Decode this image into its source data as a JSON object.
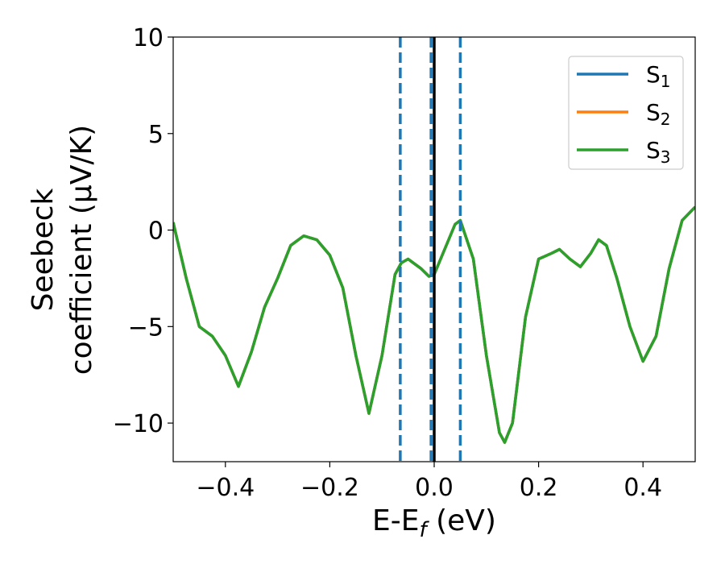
{
  "chart_data": {
    "type": "line",
    "x_label": "E-Ef (eV)",
    "y_label": [
      "Seebeck",
      "coefficient  (μV/K)"
    ],
    "x": [
      -0.5,
      -0.475,
      -0.45,
      -0.425,
      -0.4,
      -0.375,
      -0.35,
      -0.325,
      -0.3,
      -0.275,
      -0.25,
      -0.225,
      -0.2,
      -0.175,
      -0.15,
      -0.125,
      -0.1,
      -0.075,
      -0.063,
      -0.05,
      -0.025,
      -0.01,
      0,
      0.02,
      0.04,
      0.05,
      0.075,
      0.1,
      0.125,
      0.135,
      0.15,
      0.175,
      0.2,
      0.225,
      0.24,
      0.26,
      0.28,
      0.3,
      0.315,
      0.33,
      0.35,
      0.375,
      0.4,
      0.425,
      0.45,
      0.475,
      0.5
    ],
    "series": [
      {
        "name": "S1",
        "color": "#1f77b4",
        "values": [
          0.4,
          -2.5,
          -5.0,
          -5.5,
          -6.5,
          -8.1,
          -6.3,
          -4.0,
          -2.5,
          -0.8,
          -0.3,
          -0.5,
          -1.3,
          -3.0,
          -6.5,
          -9.5,
          -6.5,
          -2.3,
          -1.7,
          -1.5,
          -2.0,
          -2.4,
          -2.3,
          -1.0,
          0.3,
          0.5,
          -1.5,
          -6.5,
          -10.5,
          -11.0,
          -10.0,
          -4.5,
          -1.5,
          -1.2,
          -1.0,
          -1.5,
          -1.9,
          -1.2,
          -0.5,
          -0.8,
          -2.5,
          -5.0,
          -6.8,
          -5.5,
          -2.0,
          0.5,
          1.2
        ]
      },
      {
        "name": "S2",
        "color": "#ff7f0e",
        "values": [
          0.4,
          -2.5,
          -5.0,
          -5.5,
          -6.5,
          -8.1,
          -6.3,
          -4.0,
          -2.5,
          -0.8,
          -0.3,
          -0.5,
          -1.3,
          -3.0,
          -6.5,
          -9.5,
          -6.5,
          -2.3,
          -1.7,
          -1.5,
          -2.0,
          -2.4,
          -2.3,
          -1.0,
          0.3,
          0.5,
          -1.5,
          -6.5,
          -10.5,
          -11.0,
          -10.0,
          -4.5,
          -1.5,
          -1.2,
          -1.0,
          -1.5,
          -1.9,
          -1.2,
          -0.5,
          -0.8,
          -2.5,
          -5.0,
          -6.8,
          -5.5,
          -2.0,
          0.5,
          1.2
        ]
      },
      {
        "name": "S3",
        "color": "#2ca02c",
        "values": [
          0.4,
          -2.5,
          -5.0,
          -5.5,
          -6.5,
          -8.1,
          -6.3,
          -4.0,
          -2.5,
          -0.8,
          -0.3,
          -0.5,
          -1.3,
          -3.0,
          -6.5,
          -9.5,
          -6.5,
          -2.3,
          -1.7,
          -1.5,
          -2.0,
          -2.4,
          -2.3,
          -1.0,
          0.3,
          0.5,
          -1.5,
          -6.5,
          -10.5,
          -11.0,
          -10.0,
          -4.5,
          -1.5,
          -1.2,
          -1.0,
          -1.5,
          -1.9,
          -1.2,
          -0.5,
          -0.8,
          -2.5,
          -5.0,
          -6.8,
          -5.5,
          -2.0,
          0.5,
          1.2
        ]
      }
    ],
    "vlines": [
      {
        "x": -0.065,
        "color": "#1f77b4",
        "style": "dashed"
      },
      {
        "x": -0.006,
        "color": "#1f77b4",
        "style": "dashed"
      },
      {
        "x": 0.05,
        "color": "#1f77b4",
        "style": "dashed"
      },
      {
        "x": 0,
        "color": "#000000",
        "style": "solid"
      }
    ],
    "xlim": [
      -0.5,
      0.5
    ],
    "ylim": [
      -12,
      10
    ],
    "xticks": [
      {
        "value": -0.4,
        "label": "−0.4"
      },
      {
        "value": -0.2,
        "label": "−0.2"
      },
      {
        "value": 0,
        "label": "0.0"
      },
      {
        "value": 0.2,
        "label": "0.2"
      },
      {
        "value": 0.4,
        "label": "0.4"
      }
    ],
    "yticks": [
      {
        "value": -10,
        "label": "−10"
      },
      {
        "value": -5,
        "label": "−5"
      },
      0,
      5,
      10
    ],
    "grid": false,
    "legend": "upper right"
  }
}
